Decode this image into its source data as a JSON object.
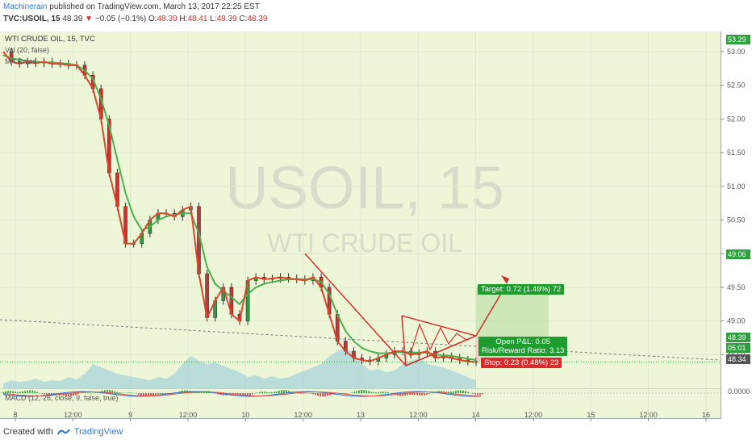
{
  "header": {
    "publisher": "Machinerain",
    "published_text": "published on TradingView.com, March 13, 2017 22:25 EST",
    "symbol_line": "TVC:USOIL, 15",
    "last": "48.39",
    "arrow": "▼",
    "change": "−0.05 (−0.1%)",
    "o_label": "O:",
    "o_val": "48.39",
    "h_label": "H:",
    "h_val": "48.41",
    "l_label": "L:",
    "l_val": "48.39",
    "c_label": "C:",
    "c_val": "48.39"
  },
  "legend": {
    "title": "WTI CRUDE OIL, 15, TVC",
    "vol": "Vol (20, false)",
    "ma": "MA Cross",
    "macd": "MACD (12, 26, close, 9, false, true)"
  },
  "watermark": {
    "symbol": "USOIL, 15",
    "name": "WTI CRUDE OIL"
  },
  "price_badges": {
    "top": "53.29",
    "mid": "49.06",
    "last": "48.39",
    "timer": "05:01",
    "low": "48.34",
    "macd_zero": "0.0000"
  },
  "position": {
    "target": "Target: 0.72 (1.49%) 72",
    "pnl": "Open P&L: 0.05",
    "rr": "Risk/Reward Ratio: 3.13",
    "stop": "Stop: 0.23 (0.48%) 23"
  },
  "footer": {
    "created": "Created with",
    "brand": "TradingView"
  },
  "colors": {
    "up": "#2e9e3e",
    "down": "#d0312d",
    "ma_fast": "#e0442a",
    "ma_slow": "#4caf50",
    "volume": "#8fc9dd",
    "background": "#eef6d8"
  },
  "chart_data": {
    "type": "line",
    "title": "WTI CRUDE OIL, 15, TVC",
    "y_ticks": [
      "53.00",
      "52.50",
      "52.00",
      "51.50",
      "51.00",
      "50.50",
      "50.00",
      "49.50",
      "49.00",
      "48.50"
    ],
    "ylim": [
      48.0,
      53.3
    ],
    "x_ticks": [
      "8",
      "12:00",
      "9",
      "12:00",
      "10",
      "12:00",
      "13",
      "12:00",
      "14",
      "12:00",
      "15",
      "12:00",
      "16"
    ],
    "series": [
      {
        "values": [
          53.0,
          52.85,
          52.82,
          52.85,
          52.83,
          52.85,
          52.82,
          52.82,
          52.8,
          52.8,
          52.65,
          52.45,
          52.0,
          51.2,
          50.7,
          50.15,
          50.15,
          50.3,
          50.5,
          50.6,
          50.6,
          50.55,
          50.65,
          50.7,
          49.7,
          49.05,
          49.3,
          49.5,
          49.1,
          49.0,
          49.6,
          49.65,
          49.62,
          49.63,
          49.65,
          49.63,
          49.62,
          49.6,
          49.65,
          49.5,
          49.1,
          48.7,
          48.55,
          48.45,
          48.42,
          48.4,
          48.45,
          48.5,
          48.55,
          48.55,
          48.5,
          48.52,
          48.55,
          48.45,
          48.47,
          48.45,
          48.42,
          48.4,
          48.39
        ]
      },
      {
        "values": [
          52.95,
          52.9,
          52.88,
          52.86,
          52.85,
          52.84,
          52.84,
          52.83,
          52.82,
          52.8,
          52.72,
          52.6,
          52.3,
          51.9,
          51.4,
          50.9,
          50.55,
          50.35,
          50.4,
          50.5,
          50.55,
          50.58,
          50.6,
          50.6,
          50.3,
          49.8,
          49.55,
          49.45,
          49.35,
          49.25,
          49.4,
          49.5,
          49.55,
          49.58,
          49.6,
          49.62,
          49.62,
          49.62,
          49.62,
          49.58,
          49.4,
          49.1,
          48.85,
          48.7,
          48.6,
          48.55,
          48.52,
          48.52,
          48.53,
          48.54,
          48.53,
          48.53,
          48.53,
          48.5,
          48.49,
          48.48,
          48.46,
          48.44,
          48.42
        ]
      }
    ],
    "annotations": {
      "falling_line_start": 50.0,
      "falling_line_end": 48.35,
      "projection_end": 49.55
    }
  }
}
